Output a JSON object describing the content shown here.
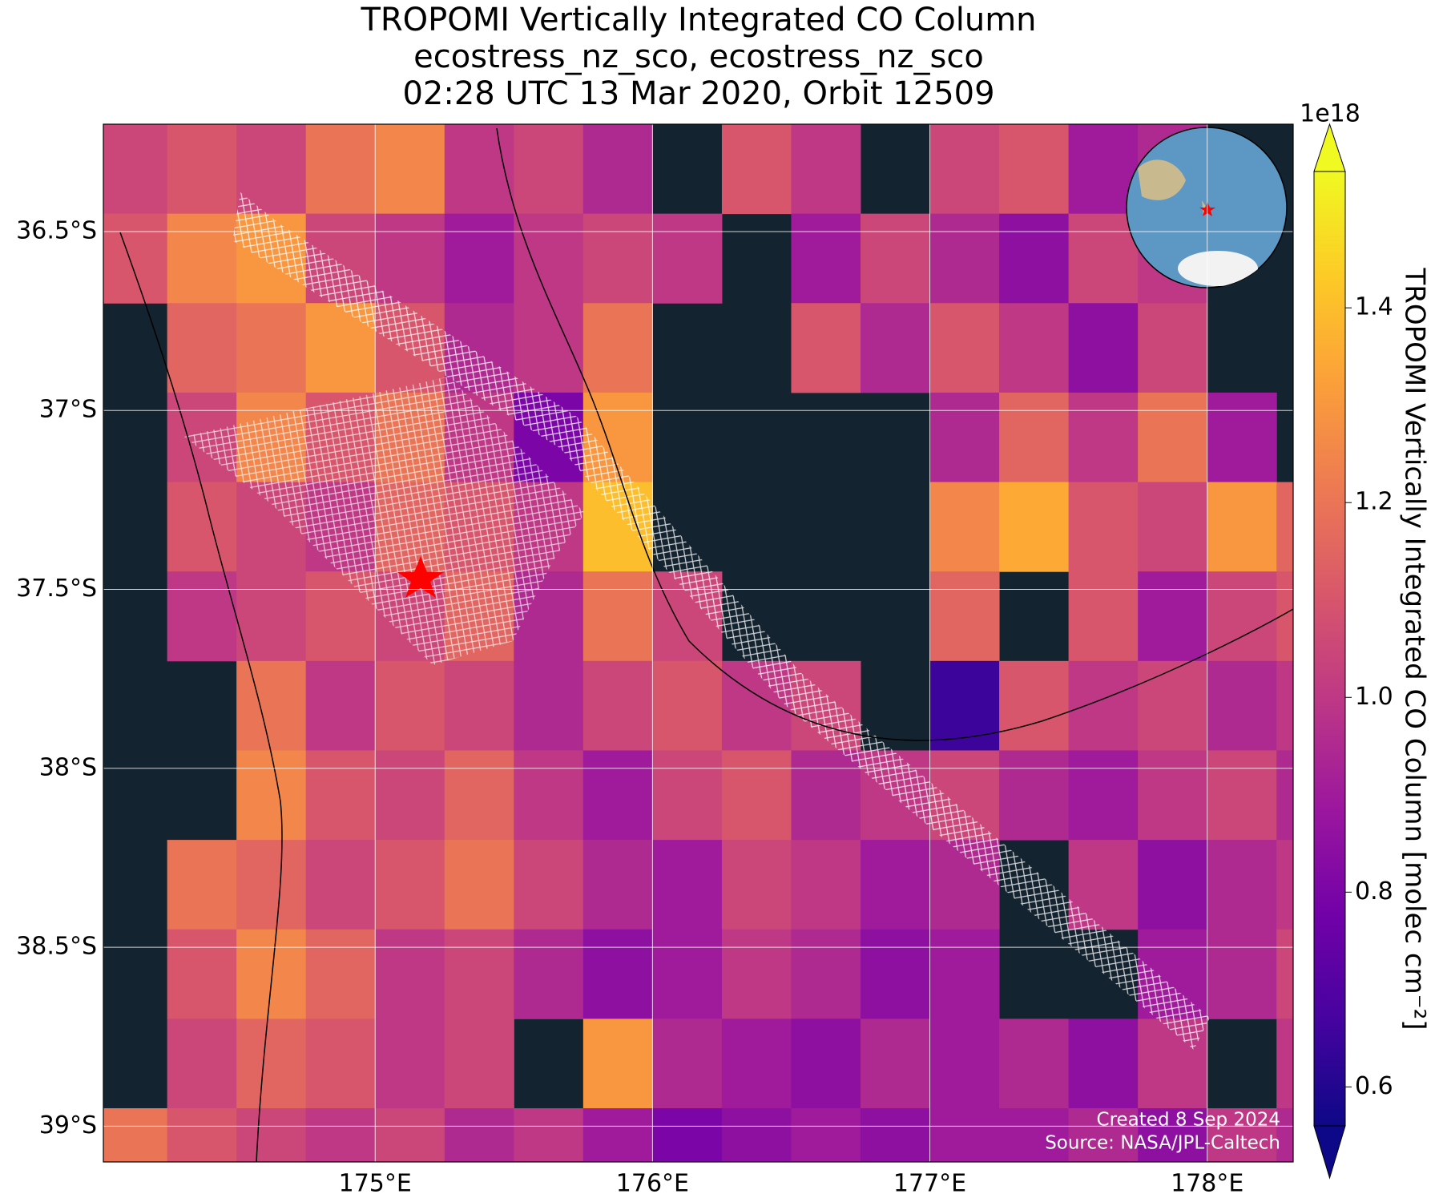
{
  "chart_data": {
    "type": "heatmap",
    "title": "TROPOMI Vertically Integrated CO Column",
    "subtitle": "ecostress_nz_sco, ecostress_nz_sco",
    "subtitle2": "02:28 UTC 13 Mar 2020, Orbit 12509",
    "created": "Created 8 Sep 2024",
    "source": "Source: NASA/JPL-Caltech",
    "offset_label": "1e18",
    "colorbar_label": "TROPOMI Vertically Integrated CO Column [molec cm⁻²]",
    "colormap": "plasma",
    "grid": true,
    "xlim": [
      174.02,
      178.31
    ],
    "ylim": [
      -39.1,
      -36.2
    ],
    "xticks": [
      {
        "value": 175,
        "label": "175°E"
      },
      {
        "value": 176,
        "label": "176°E"
      },
      {
        "value": 177,
        "label": "177°E"
      },
      {
        "value": 178,
        "label": "178°E"
      }
    ],
    "yticks": [
      {
        "value": -36.5,
        "label": "36.5°S"
      },
      {
        "value": -37,
        "label": "37°S"
      },
      {
        "value": -37.5,
        "label": "37.5°S"
      },
      {
        "value": -38,
        "label": "38°S"
      },
      {
        "value": -38.5,
        "label": "38.5°S"
      },
      {
        "value": -39,
        "label": "39°S"
      }
    ],
    "clim": [
      0.56,
      1.54
    ],
    "cticks": [
      0.6,
      0.8,
      {
        "value": 1,
        "label": "1.0"
      },
      1.2,
      1.4
    ],
    "x": [
      174.125,
      174.375,
      174.625,
      174.875,
      175.125,
      175.375,
      175.625,
      175.875,
      176.125,
      176.375,
      176.625,
      176.875,
      177.125,
      177.375,
      177.625,
      177.875,
      178.125,
      178.375
    ],
    "y": [
      -36.325,
      -36.575,
      -36.825,
      -37.075,
      -37.325,
      -37.575,
      -37.825,
      -38.075,
      -38.325,
      -38.575,
      -38.825,
      -39.075
    ],
    "z": [
      [
        1.05,
        1.1,
        1.05,
        1.2,
        1.25,
        1.0,
        1.05,
        0.95,
        null,
        1.1,
        1.0,
        null,
        1.05,
        1.1,
        0.9,
        0.95,
        null,
        null
      ],
      [
        1.1,
        1.25,
        1.3,
        1.05,
        1.0,
        0.9,
        1.0,
        1.05,
        1.0,
        null,
        0.9,
        1.05,
        0.95,
        0.85,
        1.05,
        1.0,
        null,
        null
      ],
      [
        null,
        1.15,
        1.2,
        1.3,
        1.1,
        0.95,
        1.0,
        1.2,
        null,
        null,
        1.1,
        0.95,
        1.1,
        1.0,
        0.85,
        1.05,
        null,
        null
      ],
      [
        null,
        1.05,
        1.25,
        1.1,
        1.2,
        1.0,
        0.8,
        1.3,
        null,
        null,
        null,
        null,
        0.95,
        1.15,
        1.0,
        1.2,
        0.9,
        null
      ],
      [
        null,
        1.1,
        1.05,
        1.0,
        1.15,
        1.1,
        1.0,
        1.4,
        null,
        null,
        null,
        null,
        1.25,
        1.35,
        1.1,
        1.05,
        1.3,
        1.15
      ],
      [
        null,
        1.0,
        1.05,
        1.1,
        1.05,
        1.15,
        0.95,
        1.2,
        1.05,
        null,
        null,
        null,
        1.15,
        null,
        1.1,
        0.9,
        1.05,
        1.1
      ],
      [
        null,
        null,
        1.2,
        1.0,
        1.1,
        1.05,
        0.95,
        1.05,
        1.1,
        1.0,
        1.05,
        null,
        0.65,
        1.1,
        1.0,
        1.05,
        0.95,
        1.0
      ],
      [
        null,
        null,
        1.25,
        1.1,
        1.05,
        1.15,
        1.0,
        0.9,
        1.05,
        1.1,
        0.95,
        1.0,
        1.05,
        0.95,
        0.9,
        1.0,
        1.05,
        0.95
      ],
      [
        null,
        1.2,
        1.15,
        1.05,
        1.1,
        1.2,
        1.05,
        0.95,
        0.9,
        1.05,
        1.0,
        0.9,
        0.95,
        null,
        1.0,
        0.85,
        0.95,
        1.0
      ],
      [
        null,
        1.1,
        1.25,
        1.15,
        1.0,
        1.05,
        0.95,
        0.85,
        0.9,
        1.0,
        0.95,
        0.85,
        0.9,
        null,
        null,
        0.9,
        0.95,
        1.05
      ],
      [
        null,
        1.05,
        1.15,
        1.1,
        1.0,
        1.05,
        null,
        1.3,
        0.95,
        0.9,
        0.85,
        0.95,
        0.9,
        0.95,
        0.85,
        1.0,
        null,
        1.0
      ],
      [
        1.2,
        1.1,
        1.05,
        1.0,
        1.05,
        0.95,
        1.0,
        0.9,
        0.8,
        0.85,
        0.9,
        0.85,
        0.9,
        0.9,
        0.95,
        0.85,
        1.0,
        0.95
      ]
    ]
  }
}
